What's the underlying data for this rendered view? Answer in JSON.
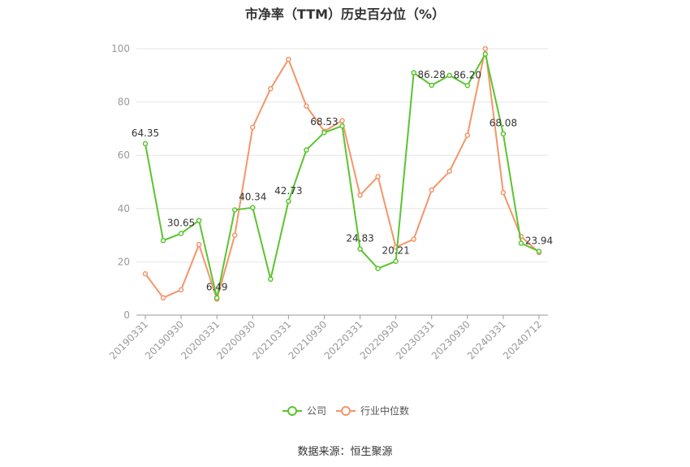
{
  "title": "市净率（TTM）历史百分位（%）",
  "source": "数据来源：恒生聚源",
  "chart_data": {
    "type": "line",
    "ylim": [
      0,
      100
    ],
    "yticks": [
      0,
      20,
      40,
      60,
      80,
      100
    ],
    "grid": true,
    "legend_position": "bottom",
    "xtick_labels": [
      "20190331",
      "20190930",
      "20200331",
      "20200930",
      "20210331",
      "20210930",
      "20220331",
      "20220930",
      "20230331",
      "20230930",
      "20240331",
      "20240712"
    ],
    "x": [
      "20190331",
      "20190630",
      "20190930",
      "20191231",
      "20200331",
      "20200630",
      "20200930",
      "20201231",
      "20210331",
      "20210630",
      "20210930",
      "20211231",
      "20220331",
      "20220630",
      "20220930",
      "20221231",
      "20230331",
      "20230630",
      "20230930",
      "20231231",
      "20240331",
      "20240630",
      "20240712"
    ],
    "series": [
      {
        "name": "公司",
        "color": "#5ac430",
        "values": [
          64.35,
          28,
          30.65,
          35.5,
          6.49,
          39.5,
          40.34,
          13.5,
          42.73,
          62,
          68.53,
          71,
          24.83,
          17.5,
          20.21,
          91,
          86.28,
          90,
          86.2,
          98,
          68.08,
          27,
          23.94
        ],
        "labels": {
          "0": "64.35",
          "2": "30.65",
          "4": "6.49",
          "6": "40.34",
          "8": "42.73",
          "10": "68.53",
          "12": "24.83",
          "14": "20.21",
          "16": "86.28",
          "18": "86.20",
          "20": "68.08",
          "22": "23.94"
        }
      },
      {
        "name": "行业中位数",
        "color": "#f4956a",
        "values": [
          15.5,
          6.5,
          9.5,
          26.5,
          6,
          30,
          70.5,
          85,
          96,
          78.5,
          69,
          73,
          45,
          52,
          25.5,
          28.5,
          47,
          54,
          67.5,
          100,
          46,
          29.5,
          23.5
        ]
      }
    ]
  }
}
